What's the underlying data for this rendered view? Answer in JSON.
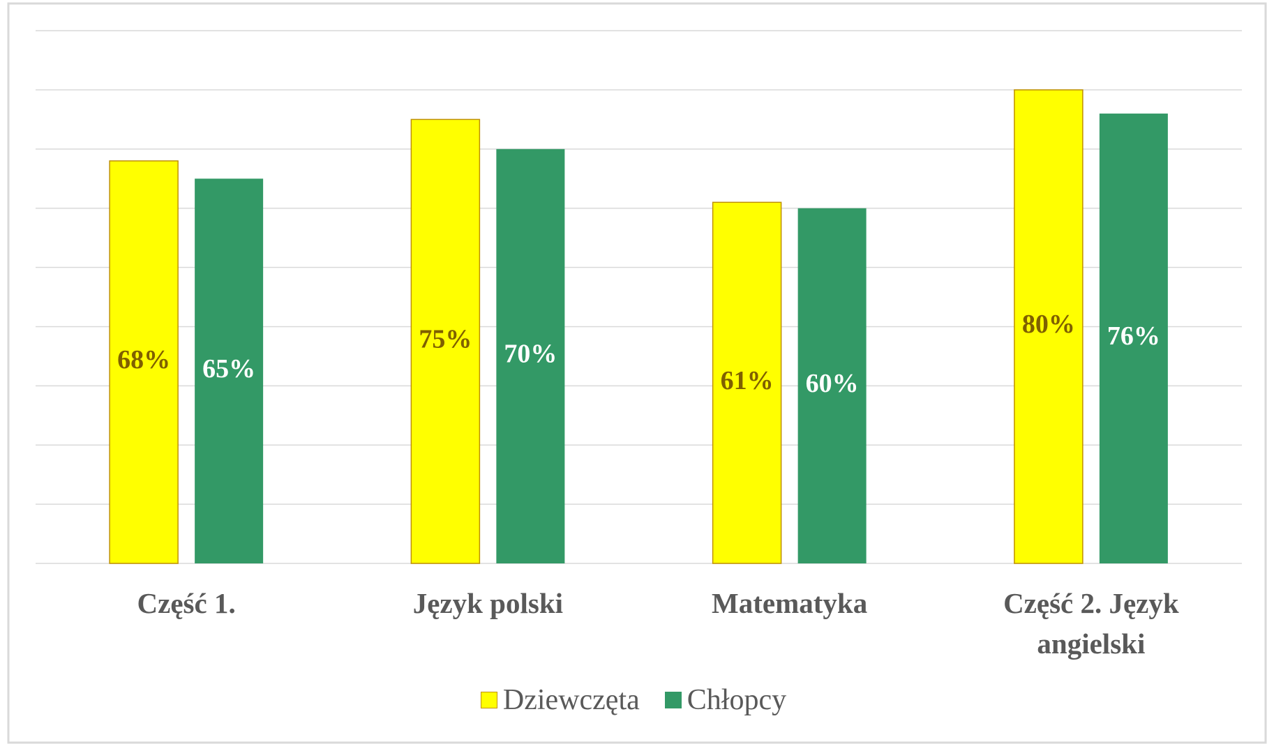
{
  "chart_data": {
    "type": "bar",
    "categories": [
      "Część 1.",
      "Język polski",
      "Matematyka",
      "Część 2. Język angielski"
    ],
    "series": [
      {
        "name": "Dziewczęta",
        "color": "#ffff00",
        "values": [
          68,
          75,
          61,
          80
        ],
        "value_labels": [
          "68%",
          "75%",
          "61%",
          "80%"
        ],
        "label_color": "#7f6000"
      },
      {
        "name": "Chłopcy",
        "color": "#339966",
        "values": [
          65,
          70,
          60,
          76
        ],
        "value_labels": [
          "65%",
          "70%",
          "60%",
          "76%"
        ],
        "label_color": "#ffffff"
      }
    ],
    "ylim": [
      0,
      90
    ],
    "yticks": [
      0,
      10,
      20,
      30,
      40,
      50,
      60,
      70,
      80,
      90
    ],
    "grid": true,
    "legend": "bottom"
  }
}
